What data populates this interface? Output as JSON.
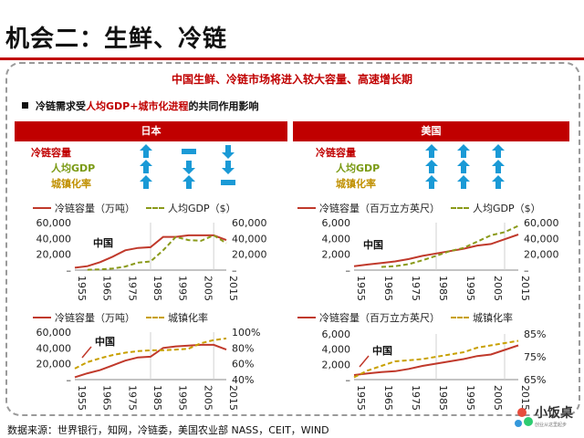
{
  "slide_title": "机会二：生鲜、冷链",
  "headline": "中国生鲜、冷链市场将进入较大容量、高速增长期",
  "subhead": {
    "pre": "冷链需求受",
    "highlight": "人均GDP+城市化进程",
    "post": "的共同作用影响"
  },
  "panels": {
    "japan": {
      "title": "日本",
      "indicators": [
        "冷链容量",
        "人均GDP",
        "城镇化率"
      ],
      "arrows": [
        [
          "up",
          "flat",
          "down"
        ],
        [
          "up",
          "down",
          "down"
        ],
        [
          "up",
          "up",
          "flat"
        ]
      ]
    },
    "usa": {
      "title": "美国",
      "indicators": [
        "冷链容量",
        "人均GDP",
        "城镇化率"
      ],
      "arrows": [
        [
          "up",
          "up",
          "up"
        ],
        [
          "up",
          "up",
          "up"
        ],
        [
          "up",
          "up",
          "up"
        ]
      ]
    }
  },
  "legends": {
    "jp_top": {
      "primary": "冷链容量（万吨）",
      "secondary": "人均GDP（$）"
    },
    "us_top": {
      "primary": "冷链容量（百万立方英尺）",
      "secondary": "人均GDP（$）"
    },
    "jp_bottom": {
      "primary": "冷链容量（万吨）",
      "secondary": "城镇化率"
    },
    "us_bottom": {
      "primary": "冷链容量（百万立方英尺）",
      "secondary": "城镇化率"
    }
  },
  "source": "数据来源：世界银行，知网，冷链委，美国农业部 NASS，CEIT，WIND",
  "logo": {
    "name": "小饭桌",
    "tagline": "创业从这里起步"
  },
  "colors": {
    "accent": "#c00000",
    "arrow": "#1a9ad6",
    "primary_line": "#c0392b",
    "gdp_line": "#8a9a1a",
    "urban_line": "#c8a000"
  },
  "chart_data": [
    {
      "id": "jp_top",
      "type": "line",
      "x": [
        1955,
        1960,
        1965,
        1970,
        1975,
        1980,
        1985,
        1990,
        1995,
        2000,
        2005,
        2010,
        2015
      ],
      "x_ticks": [
        1955,
        1965,
        1975,
        1985,
        1995,
        2005,
        2015
      ],
      "series": [
        {
          "name": "冷链容量（万吨）",
          "axis": "left",
          "style": "solid",
          "values": [
            3000,
            5000,
            10000,
            17000,
            25000,
            28000,
            29000,
            42000,
            42000,
            44000,
            44000,
            44000,
            38000
          ]
        },
        {
          "name": "人均GDP（$）",
          "axis": "right",
          "style": "dashed",
          "values": [
            null,
            500,
            900,
            2000,
            4500,
            9500,
            11000,
            25000,
            42000,
            38000,
            37000,
            44000,
            34000
          ]
        }
      ],
      "left_ticks": [
        "60,000",
        "40,000",
        "20,000",
        "–"
      ],
      "right_ticks": [
        "60,000",
        "40,000",
        "20,000",
        "–"
      ],
      "ylim_left": [
        0,
        60000
      ],
      "ylim_right": [
        0,
        60000
      ],
      "annotations": [
        {
          "text": "中国"
        }
      ]
    },
    {
      "id": "us_top",
      "type": "line",
      "x": [
        1955,
        1960,
        1965,
        1970,
        1975,
        1980,
        1985,
        1990,
        1995,
        2000,
        2005,
        2010,
        2015
      ],
      "x_ticks": [
        1955,
        1965,
        1975,
        1985,
        1995,
        2005,
        2015
      ],
      "series": [
        {
          "name": "冷链容量（百万立方英尺）",
          "axis": "left",
          "style": "solid",
          "values": [
            500,
            700,
            900,
            1100,
            1400,
            1800,
            2100,
            2400,
            2700,
            3100,
            3300,
            3900,
            4500
          ]
        },
        {
          "name": "人均GDP（$）",
          "axis": "right",
          "style": "dashed",
          "values": [
            null,
            null,
            4000,
            5000,
            7500,
            12500,
            18000,
            24000,
            28000,
            36000,
            44000,
            48000,
            56000
          ]
        }
      ],
      "left_ticks": [
        "6,000",
        "4,000",
        "2,000",
        "–"
      ],
      "right_ticks": [
        "60,000",
        "40,000",
        "20,000",
        "–"
      ],
      "ylim_left": [
        0,
        6000
      ],
      "ylim_right": [
        0,
        60000
      ],
      "annotations": [
        {
          "text": "中国"
        }
      ]
    },
    {
      "id": "jp_bottom",
      "type": "line",
      "x": [
        1955,
        1960,
        1965,
        1970,
        1975,
        1980,
        1985,
        1990,
        1995,
        2000,
        2005,
        2010,
        2015
      ],
      "x_ticks": [
        1955,
        1965,
        1975,
        1985,
        1995,
        2005,
        2015
      ],
      "series": [
        {
          "name": "冷链容量（万吨）",
          "axis": "left",
          "style": "solid",
          "values": [
            3000,
            8000,
            12000,
            18000,
            24000,
            28000,
            29000,
            40000,
            42000,
            43000,
            44000,
            44000,
            38000
          ]
        },
        {
          "name": "城镇化率",
          "axis": "right",
          "style": "dashed",
          "values": [
            0.54,
            0.62,
            0.67,
            0.71,
            0.74,
            0.76,
            0.77,
            0.77,
            0.78,
            0.79,
            0.86,
            0.9,
            0.92
          ]
        }
      ],
      "left_ticks": [
        "60,000",
        "40,000",
        "20,000",
        "–"
      ],
      "right_ticks": [
        "100%",
        "80%",
        "60%",
        "40%"
      ],
      "ylim_left": [
        0,
        60000
      ],
      "ylim_right": [
        0.4,
        1.0
      ],
      "annotations": [
        {
          "text": "中国"
        }
      ]
    },
    {
      "id": "us_bottom",
      "type": "line",
      "x": [
        1955,
        1960,
        1965,
        1970,
        1975,
        1980,
        1985,
        1990,
        1995,
        2000,
        2005,
        2010,
        2015
      ],
      "x_ticks": [
        1955,
        1965,
        1975,
        1985,
        1995,
        2005,
        2015
      ],
      "series": [
        {
          "name": "冷链容量（百万立方英尺）",
          "axis": "left",
          "style": "solid",
          "values": [
            600,
            800,
            1000,
            1100,
            1400,
            1800,
            2100,
            2400,
            2700,
            3100,
            3300,
            3900,
            4500
          ]
        },
        {
          "name": "城镇化率",
          "axis": "right",
          "style": "dashed",
          "values": [
            0.66,
            0.69,
            0.71,
            0.73,
            0.735,
            0.74,
            0.75,
            0.76,
            0.77,
            0.79,
            0.8,
            0.81,
            0.82
          ]
        }
      ],
      "left_ticks": [
        "6,000",
        "4,000",
        "2,000",
        "–"
      ],
      "right_ticks": [
        "85%",
        "75%",
        "65%"
      ],
      "ylim_left": [
        0,
        6000
      ],
      "ylim_right": [
        0.65,
        0.85
      ],
      "annotations": [
        {
          "text": "中国"
        }
      ]
    }
  ]
}
